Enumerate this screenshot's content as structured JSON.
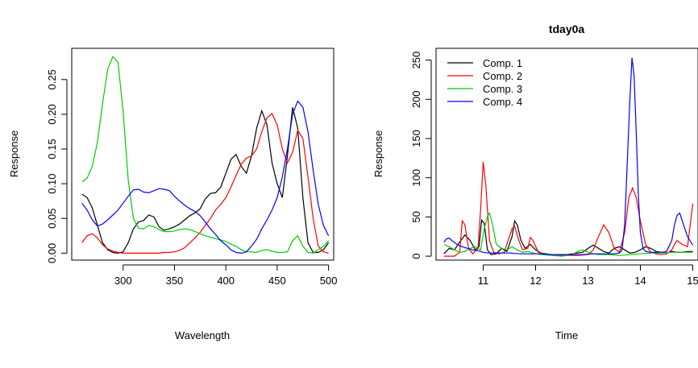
{
  "chart_data": [
    {
      "type": "line",
      "title": "",
      "xlabel": "Wavelength",
      "ylabel": "Response",
      "xlim": [
        250,
        505
      ],
      "ylim": [
        -0.01,
        0.295
      ],
      "xticks": [
        300,
        350,
        400,
        450,
        500
      ],
      "yticks": [
        0.0,
        0.05,
        0.1,
        0.15,
        0.2,
        0.25
      ],
      "ytick_labels": [
        "0.00",
        "0.05",
        "0.10",
        "0.15",
        "0.20",
        "0.25"
      ],
      "series": [
        {
          "color": "#000000",
          "x": [
            260,
            265,
            270,
            275,
            280,
            285,
            290,
            295,
            300,
            305,
            310,
            315,
            320,
            325,
            330,
            335,
            340,
            345,
            350,
            355,
            360,
            365,
            370,
            375,
            380,
            385,
            390,
            395,
            400,
            405,
            410,
            415,
            420,
            425,
            430,
            435,
            440,
            445,
            450,
            455,
            460,
            465,
            470,
            475,
            480,
            485,
            490,
            495,
            500
          ],
          "y": [
            0.085,
            0.08,
            0.065,
            0.04,
            0.015,
            0.005,
            0.001,
            0.0,
            0.002,
            0.015,
            0.035,
            0.045,
            0.047,
            0.055,
            0.052,
            0.038,
            0.033,
            0.035,
            0.038,
            0.042,
            0.048,
            0.054,
            0.058,
            0.064,
            0.078,
            0.086,
            0.087,
            0.095,
            0.115,
            0.135,
            0.142,
            0.125,
            0.115,
            0.14,
            0.18,
            0.205,
            0.185,
            0.13,
            0.1,
            0.08,
            0.14,
            0.21,
            0.18,
            0.08,
            0.015,
            0.001,
            0.001,
            0.005,
            0.015
          ]
        },
        {
          "color": "#ff0000",
          "x": [
            260,
            265,
            270,
            275,
            280,
            285,
            290,
            295,
            300,
            305,
            310,
            315,
            320,
            325,
            330,
            335,
            340,
            345,
            350,
            355,
            360,
            365,
            370,
            375,
            380,
            385,
            390,
            395,
            400,
            405,
            410,
            415,
            420,
            425,
            430,
            435,
            440,
            445,
            450,
            455,
            460,
            465,
            470,
            475,
            480,
            485,
            490,
            495,
            500
          ],
          "y": [
            0.015,
            0.025,
            0.028,
            0.022,
            0.012,
            0.006,
            0.003,
            0.001,
            0.0,
            0.0,
            0.0,
            0.0,
            0.0,
            0.0,
            0.0,
            0.0,
            0.001,
            0.001,
            0.002,
            0.004,
            0.008,
            0.015,
            0.022,
            0.03,
            0.04,
            0.05,
            0.062,
            0.07,
            0.08,
            0.095,
            0.112,
            0.128,
            0.137,
            0.14,
            0.15,
            0.175,
            0.195,
            0.201,
            0.185,
            0.15,
            0.13,
            0.145,
            0.177,
            0.165,
            0.11,
            0.05,
            0.01,
            0.002,
            0.0
          ]
        },
        {
          "color": "#00cc00",
          "x": [
            260,
            265,
            270,
            275,
            280,
            285,
            290,
            295,
            300,
            305,
            310,
            315,
            320,
            325,
            330,
            335,
            340,
            345,
            350,
            355,
            360,
            365,
            370,
            375,
            380,
            385,
            390,
            395,
            400,
            405,
            410,
            415,
            420,
            425,
            430,
            435,
            440,
            445,
            450,
            455,
            460,
            465,
            470,
            475,
            480,
            485,
            490,
            495,
            500
          ],
          "y": [
            0.103,
            0.108,
            0.125,
            0.16,
            0.215,
            0.265,
            0.283,
            0.275,
            0.205,
            0.105,
            0.05,
            0.036,
            0.035,
            0.04,
            0.038,
            0.034,
            0.031,
            0.031,
            0.032,
            0.034,
            0.035,
            0.034,
            0.031,
            0.028,
            0.025,
            0.023,
            0.021,
            0.019,
            0.017,
            0.013,
            0.01,
            0.005,
            0.002,
            0.002,
            0.001,
            0.004,
            0.005,
            0.003,
            0.001,
            0.001,
            0.002,
            0.018,
            0.025,
            0.01,
            0.001,
            0.0,
            0.005,
            0.01,
            0.018
          ]
        },
        {
          "color": "#0000ff",
          "x": [
            260,
            265,
            270,
            275,
            280,
            285,
            290,
            295,
            300,
            305,
            310,
            315,
            320,
            325,
            330,
            335,
            340,
            345,
            350,
            355,
            360,
            365,
            370,
            375,
            380,
            385,
            390,
            395,
            400,
            405,
            410,
            415,
            420,
            425,
            430,
            435,
            440,
            445,
            450,
            455,
            460,
            465,
            470,
            475,
            480,
            485,
            490,
            495,
            500
          ],
          "y": [
            0.072,
            0.062,
            0.048,
            0.039,
            0.042,
            0.048,
            0.055,
            0.062,
            0.072,
            0.082,
            0.091,
            0.092,
            0.088,
            0.087,
            0.09,
            0.093,
            0.092,
            0.09,
            0.082,
            0.075,
            0.069,
            0.064,
            0.06,
            0.054,
            0.045,
            0.035,
            0.027,
            0.018,
            0.012,
            0.005,
            0.001,
            0.0,
            0.002,
            0.01,
            0.02,
            0.035,
            0.048,
            0.062,
            0.08,
            0.11,
            0.15,
            0.2,
            0.219,
            0.21,
            0.175,
            0.12,
            0.07,
            0.04,
            0.025
          ]
        }
      ]
    },
    {
      "type": "line",
      "title": "tday0a",
      "xlabel": "Time",
      "ylabel": "Response",
      "xlim": [
        10.1,
        15.1
      ],
      "ylim": [
        -5,
        265
      ],
      "xticks": [
        11,
        12,
        13,
        14,
        15
      ],
      "yticks": [
        0,
        50,
        100,
        150,
        200,
        250
      ],
      "ytick_labels": [
        "0",
        "50",
        "100",
        "150",
        "200",
        "250"
      ],
      "legend": {
        "position": "top-left"
      },
      "series": [
        {
          "name": "Comp. 1",
          "color": "#000000",
          "x": [
            10.25,
            10.35,
            10.45,
            10.55,
            10.65,
            10.75,
            10.85,
            10.92,
            10.97,
            11.02,
            11.08,
            11.15,
            11.25,
            11.35,
            11.45,
            11.55,
            11.6,
            11.65,
            11.72,
            11.8,
            11.9,
            12.0,
            12.1,
            12.2,
            12.3,
            12.4,
            12.5,
            12.6,
            12.7,
            12.8,
            12.9,
            13.0,
            13.1,
            13.2,
            13.3,
            13.4,
            13.5,
            13.6,
            13.7,
            13.8,
            13.9,
            14.0,
            14.1,
            14.2,
            14.3,
            14.4,
            14.5,
            14.6,
            14.7,
            14.8,
            14.9,
            15.0
          ],
          "y": [
            3,
            10,
            8,
            18,
            27,
            20,
            8,
            12,
            46,
            42,
            8,
            2,
            3,
            10,
            6,
            25,
            45,
            40,
            20,
            10,
            15,
            8,
            4,
            3,
            2,
            2,
            2,
            2,
            3,
            4,
            5,
            10,
            14,
            10,
            6,
            4,
            10,
            12,
            8,
            4,
            5,
            8,
            12,
            10,
            6,
            5,
            4,
            6,
            5,
            5,
            6,
            6
          ]
        },
        {
          "name": "Comp. 2",
          "color": "#ff0000",
          "x": [
            10.25,
            10.35,
            10.45,
            10.55,
            10.6,
            10.65,
            10.72,
            10.8,
            10.9,
            10.95,
            11.0,
            11.05,
            11.12,
            11.2,
            11.3,
            11.4,
            11.5,
            11.55,
            11.6,
            11.68,
            11.75,
            11.85,
            11.9,
            11.95,
            12.05,
            12.2,
            12.4,
            12.6,
            12.8,
            13.0,
            13.1,
            13.2,
            13.3,
            13.4,
            13.5,
            13.6,
            13.7,
            13.78,
            13.85,
            13.92,
            14.0,
            14.1,
            14.2,
            14.3,
            14.4,
            14.5,
            14.6,
            14.65,
            14.7,
            14.8,
            14.9,
            15.0
          ],
          "y": [
            0,
            0,
            0,
            5,
            45,
            40,
            10,
            3,
            10,
            60,
            120,
            90,
            20,
            5,
            3,
            5,
            25,
            35,
            38,
            20,
            8,
            10,
            24,
            20,
            5,
            2,
            1,
            1,
            1,
            2,
            8,
            25,
            40,
            30,
            10,
            5,
            30,
            75,
            87,
            75,
            45,
            15,
            5,
            3,
            2,
            3,
            8,
            15,
            20,
            15,
            12,
            67
          ]
        },
        {
          "name": "Comp. 3",
          "color": "#00cc00",
          "x": [
            10.25,
            10.35,
            10.45,
            10.55,
            10.65,
            10.75,
            10.85,
            10.95,
            11.02,
            11.08,
            11.12,
            11.18,
            11.25,
            11.35,
            11.45,
            11.55,
            11.65,
            11.75,
            11.85,
            11.95,
            12.1,
            12.3,
            12.5,
            12.7,
            12.8,
            12.9,
            13.0,
            13.1,
            13.2,
            13.4,
            13.6,
            13.8,
            14.0,
            14.2,
            14.4,
            14.6,
            14.8,
            15.0
          ],
          "y": [
            15,
            12,
            8,
            5,
            6,
            10,
            12,
            8,
            35,
            50,
            55,
            40,
            15,
            10,
            8,
            12,
            8,
            5,
            6,
            4,
            2,
            1,
            0,
            2,
            6,
            8,
            5,
            3,
            2,
            2,
            1,
            2,
            3,
            4,
            4,
            5,
            5,
            5
          ]
        },
        {
          "name": "Comp. 4",
          "color": "#0000ff",
          "x": [
            10.25,
            10.3,
            10.35,
            10.4,
            10.5,
            10.6,
            10.7,
            10.8,
            10.9,
            11.0,
            11.1,
            11.3,
            11.5,
            11.7,
            11.9,
            12.1,
            12.3,
            12.5,
            12.7,
            12.9,
            13.1,
            13.3,
            13.5,
            13.6,
            13.65,
            13.7,
            13.75,
            13.8,
            13.84,
            13.88,
            13.92,
            13.96,
            14.0,
            14.05,
            14.1,
            14.2,
            14.3,
            14.4,
            14.5,
            14.6,
            14.65,
            14.7,
            14.75,
            14.8,
            14.9,
            15.0
          ],
          "y": [
            18,
            22,
            23,
            20,
            15,
            12,
            10,
            8,
            7,
            5,
            4,
            4,
            4,
            3,
            3,
            3,
            2,
            2,
            2,
            2,
            3,
            3,
            3,
            4,
            8,
            40,
            120,
            200,
            253,
            230,
            160,
            80,
            30,
            10,
            6,
            5,
            5,
            5,
            6,
            20,
            40,
            52,
            55,
            45,
            25,
            14
          ]
        }
      ]
    }
  ]
}
